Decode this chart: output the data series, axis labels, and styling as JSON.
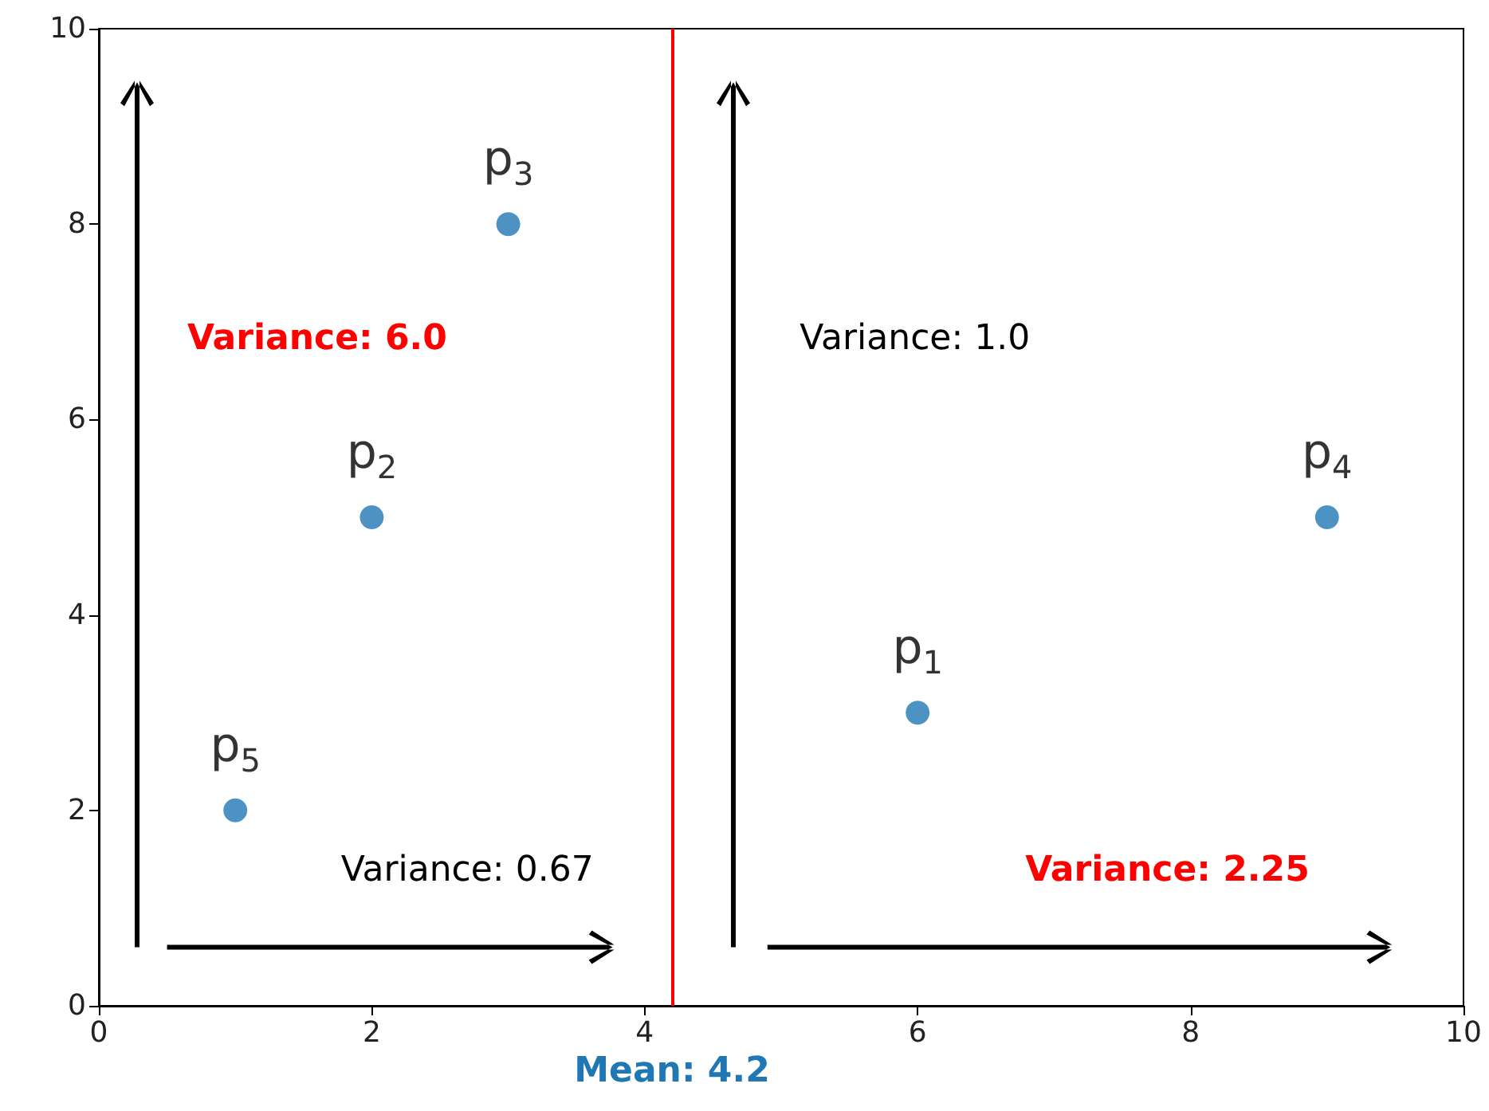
{
  "chart_data": {
    "type": "scatter",
    "marker": "circle",
    "series": [
      {
        "name": "p$_{5}$",
        "color": "#1f77b4",
        "x": [
          1
        ],
        "values": [
          2
        ]
      },
      {
        "name": "p$_{2}$",
        "color": "#1f77b4",
        "x": [
          2
        ],
        "values": [
          5
        ]
      },
      {
        "name": "p$_{3}$",
        "color": "#1f77b4",
        "x": [
          3
        ],
        "values": [
          8
        ]
      },
      {
        "name": "p$_{1}$",
        "color": "#1f77b4",
        "x": [
          6
        ],
        "values": [
          3
        ]
      },
      {
        "name": "p$_{4}$",
        "color": "#1f77b4",
        "x": [
          9
        ],
        "values": [
          5
        ]
      }
    ],
    "xlim": [
      0,
      10
    ],
    "xticks": [
      0,
      2,
      4,
      6,
      8,
      10
    ],
    "ylim": [
      0,
      10
    ],
    "yticks": [
      0,
      2,
      4,
      6,
      8,
      10
    ],
    "grid": false,
    "ref_lines": [
      {
        "axis": "x",
        "value": 4.2,
        "label": "Mean: 4.2",
        "color": "#ff0000"
      }
    ],
    "annotations": [
      "Variance: 6.0",
      "Variance: 0.67",
      "Variance: 1.0",
      "Variance: 2.25"
    ]
  }
}
